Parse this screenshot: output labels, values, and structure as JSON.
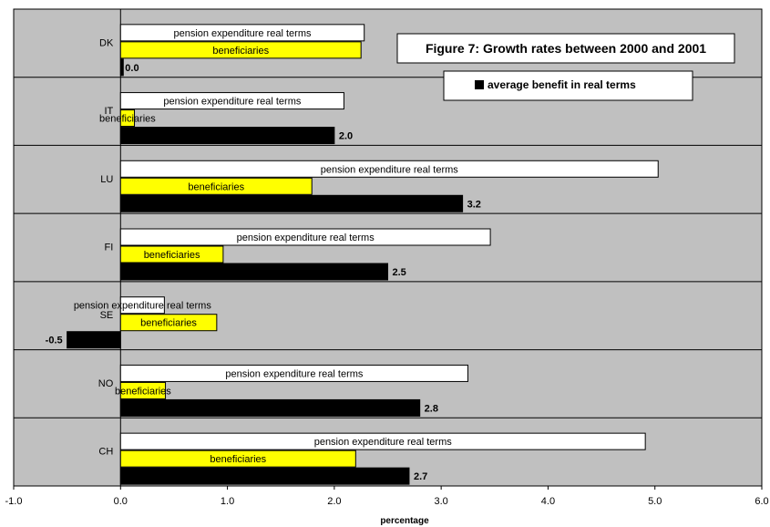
{
  "chart_data": {
    "type": "bar",
    "orientation": "horizontal",
    "title": "Figure 7: Growth rates between 2000 and 2001",
    "xlabel": "percentage",
    "ylabel": "",
    "xlim": [
      -1.0,
      6.0
    ],
    "x_ticks": [
      "-1.0",
      "0.0",
      "1.0",
      "2.0",
      "3.0",
      "4.0",
      "5.0",
      "6.0"
    ],
    "grid": true,
    "categories": [
      "DK",
      "IT",
      "LU",
      "FI",
      "SE",
      "NO",
      "CH"
    ],
    "series": [
      {
        "name": "pension expenditure real terms",
        "color": "#ffffff",
        "values": [
          2.28,
          2.09,
          5.03,
          3.46,
          0.41,
          3.25,
          4.91
        ]
      },
      {
        "name": "beneficiaries",
        "color": "#ffff00",
        "values": [
          2.25,
          0.13,
          1.79,
          0.96,
          0.9,
          0.42,
          2.2
        ]
      },
      {
        "name": "average benefit in real terms",
        "color": "#000000",
        "values": [
          0.0,
          2.0,
          3.2,
          2.5,
          -0.5,
          2.8,
          2.7
        ]
      }
    ],
    "data_labels": [
      "0.0",
      "2.0",
      "3.2",
      "2.5",
      "-0.5",
      "2.8",
      "2.7"
    ],
    "legend": {
      "position": "top-right",
      "entries": [
        "average benefit in real terms"
      ]
    }
  }
}
